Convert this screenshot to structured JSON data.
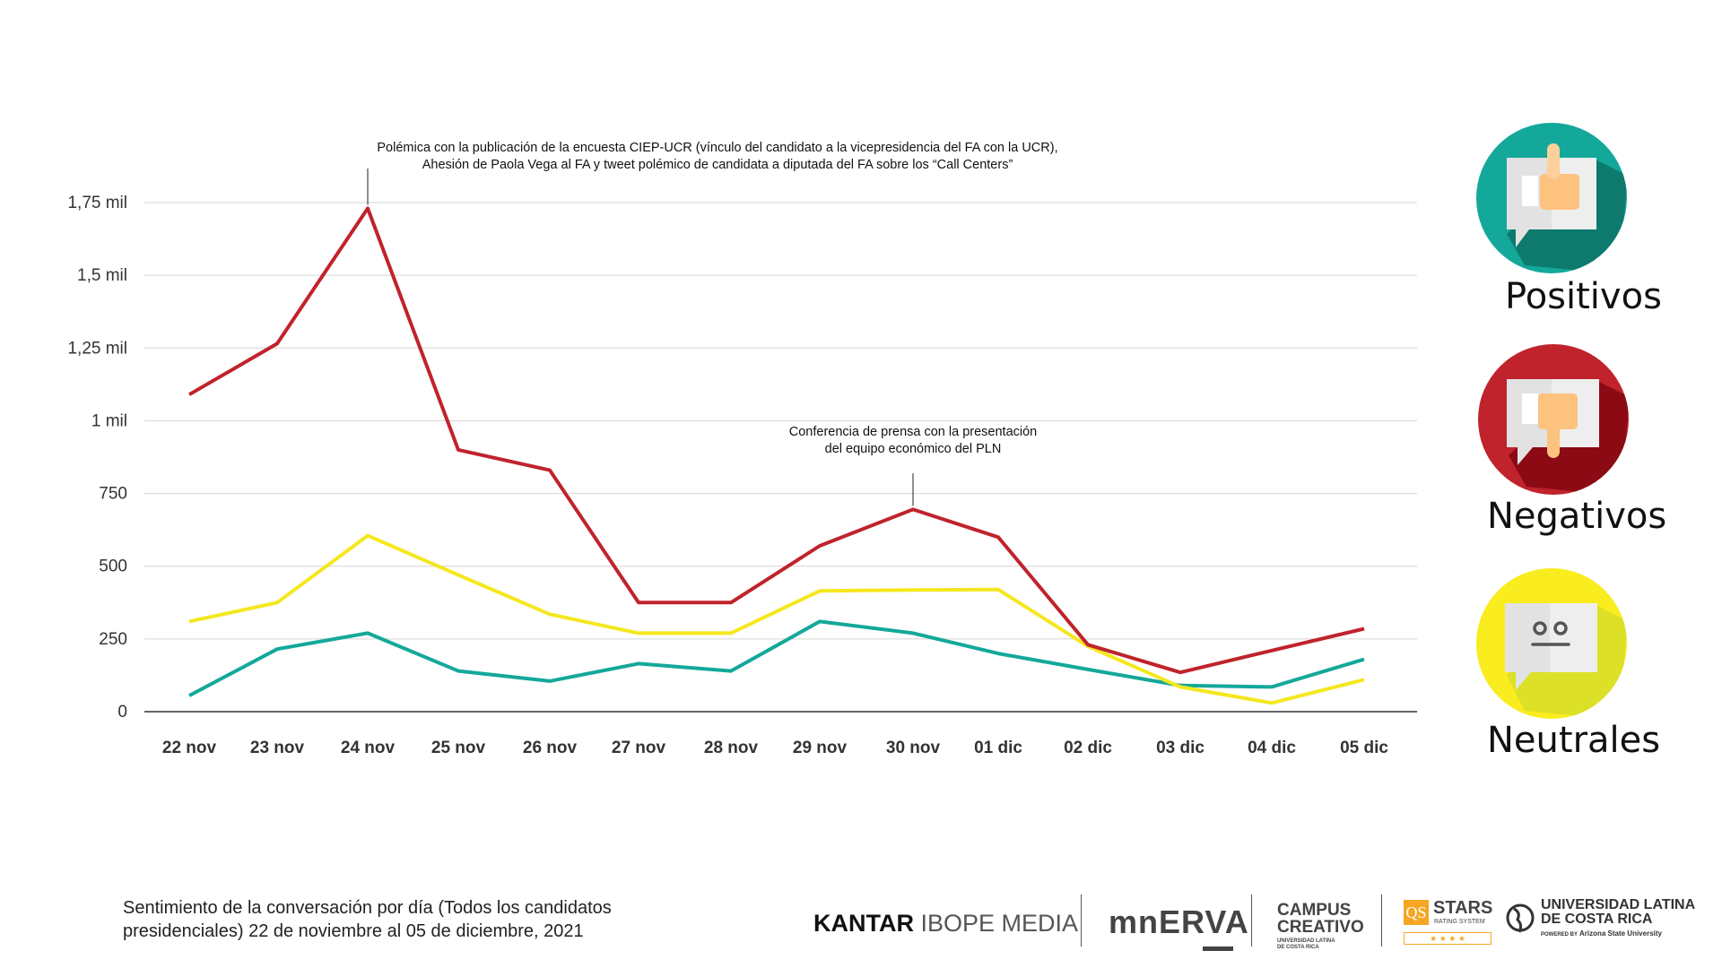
{
  "chart_data": {
    "type": "line",
    "title": "",
    "xlabel": "",
    "ylabel": "",
    "ylim": [
      0,
      1750
    ],
    "grid": true,
    "categories": [
      "22 nov",
      "23 nov",
      "24 nov",
      "25 nov",
      "26 nov",
      "27 nov",
      "28 nov",
      "29 nov",
      "30 nov",
      "01 dic",
      "02 dic",
      "03 dic",
      "04 dic",
      "05 dic"
    ],
    "yticks": [
      0,
      250,
      500,
      750,
      1000,
      1250,
      1500,
      1750
    ],
    "ytick_labels": [
      "0",
      "250",
      "500",
      "750",
      "1 mil",
      "1,25 mil",
      "1,5 mil",
      "1,75 mil"
    ],
    "series": [
      {
        "name": "Negativos",
        "color": "#C0232C",
        "values": [
          1090,
          1265,
          1730,
          900,
          830,
          375,
          375,
          570,
          695,
          600,
          230,
          135,
          210,
          285
        ]
      },
      {
        "name": "Neutrales",
        "color": "#F5E71E",
        "values": [
          310,
          375,
          605,
          470,
          335,
          270,
          270,
          415,
          418,
          420,
          225,
          85,
          30,
          110
        ]
      },
      {
        "name": "Positivos",
        "color": "#13A89A",
        "values": [
          55,
          215,
          270,
          140,
          105,
          165,
          140,
          310,
          270,
          200,
          145,
          90,
          85,
          180
        ]
      }
    ],
    "annotations": [
      {
        "category": "24 nov",
        "lines": [
          "Polémica con la publicación de la encuesta CIEP-UCR (vínculo del candidato a la vicepresidencia del FA con la UCR),",
          "Ahesión de Paola Vega al FA  y tweet polémico de candidata a diputada del FA sobre los “Call Centers”"
        ]
      },
      {
        "category": "30 nov",
        "lines": [
          "Conferencia de prensa con la presentación",
          "del equipo económico del PLN"
        ]
      }
    ]
  },
  "legend": [
    {
      "label": "Positivos",
      "icon": "thumbs-up-icon",
      "color": "#13A89A",
      "shadow": "#0E7A6E"
    },
    {
      "label": "Negativos",
      "icon": "thumbs-down-icon",
      "color": "#C0232C",
      "shadow": "#8B0A14"
    },
    {
      "label": "Neutrales",
      "icon": "neutral-face-icon",
      "color": "#F9EC1F",
      "shadow": "#DCE026"
    }
  ],
  "caption": "Sentimiento de la conversación por día (Todos los candidatos presidenciales) 22 de noviembre al 05 de diciembre, 2021",
  "logos": {
    "kantar_bold": "KANTAR",
    "kantar_light": "IBOPE MEDIA",
    "minerva": "mnERVA",
    "campus_1": "CAMPUS",
    "campus_2": "CREATIVO",
    "campus_sub_1": "UNIVERSIDAD LATINA",
    "campus_sub_2": "DE COSTA RICA",
    "qs": "QS",
    "stars": "STARS",
    "stars_sub": "RATING SYSTEM",
    "stars_rating": "★ ★ ★ ★",
    "ul_1": "UNIVERSIDAD LATINA",
    "ul_2": "DE COSTA RICA",
    "ul_powered": "POWERED BY",
    "ul_asu": "Arizona State University"
  }
}
